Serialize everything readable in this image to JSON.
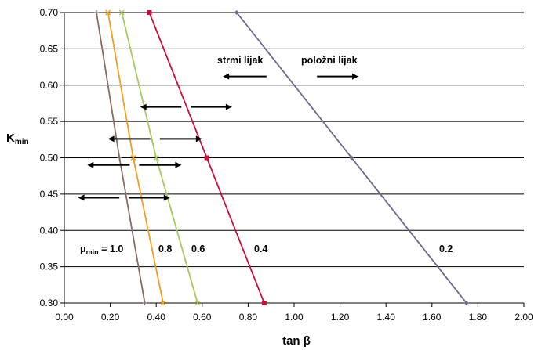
{
  "chart_data": {
    "type": "line",
    "xlabel": "tan β",
    "ylabel": {
      "main": "K",
      "sub": "min"
    },
    "xlim": [
      0,
      2.0
    ],
    "ylim": [
      0.3,
      0.7
    ],
    "x_ticks": [
      "0.00",
      "0.20",
      "0.40",
      "0.60",
      "0.80",
      "1.00",
      "1.20",
      "1.40",
      "1.60",
      "1.80",
      "2.00"
    ],
    "y_ticks": [
      "0.30",
      "0.35",
      "0.40",
      "0.45",
      "0.50",
      "0.55",
      "0.60",
      "0.65",
      "0.70"
    ],
    "grid": "horizontal",
    "series": [
      {
        "name": "1.0",
        "color": "#8a6b66",
        "marker": "cross",
        "points": [
          [
            0.35,
            0.3
          ],
          [
            0.24,
            0.5
          ],
          [
            0.14,
            0.7
          ]
        ]
      },
      {
        "name": "0.8",
        "color": "#f0a020",
        "marker": "x",
        "points": [
          [
            0.43,
            0.3
          ],
          [
            0.3,
            0.5
          ],
          [
            0.19,
            0.7
          ]
        ]
      },
      {
        "name": "0.6",
        "color": "#a8c860",
        "marker": "x",
        "points": [
          [
            0.58,
            0.3
          ],
          [
            0.4,
            0.5
          ],
          [
            0.25,
            0.7
          ]
        ]
      },
      {
        "name": "0.4",
        "color": "#c8103a",
        "marker": "square",
        "points": [
          [
            0.87,
            0.3
          ],
          [
            0.62,
            0.5
          ],
          [
            0.37,
            0.7
          ]
        ]
      },
      {
        "name": "0.2",
        "color": "#6a6a8a",
        "marker": "diamond",
        "points": [
          [
            1.75,
            0.3
          ],
          [
            1.25,
            0.5
          ],
          [
            0.75,
            0.7
          ]
        ]
      }
    ],
    "annotations": {
      "mu_label": {
        "main": "μ",
        "sub": "min",
        "suffix": " = 1.0"
      },
      "curve_labels": [
        "0.8",
        "0.6",
        "0.4",
        "0.2"
      ],
      "steep": "strmi lijak",
      "gentle": "položni lijak"
    },
    "double_arrows": [
      {
        "y": 0.445,
        "x_left": 0.06,
        "x_right": 0.46
      },
      {
        "y": 0.49,
        "x_left": 0.1,
        "x_right": 0.51
      },
      {
        "y": 0.526,
        "x_left": 0.19,
        "x_right": 0.6
      },
      {
        "y": 0.57,
        "x_left": 0.33,
        "x_right": 0.73
      }
    ],
    "direction_arrows": [
      {
        "y": 0.612,
        "x_from": 0.88,
        "x_to": 0.69
      },
      {
        "y": 0.612,
        "x_from": 1.1,
        "x_to": 1.28
      }
    ]
  }
}
